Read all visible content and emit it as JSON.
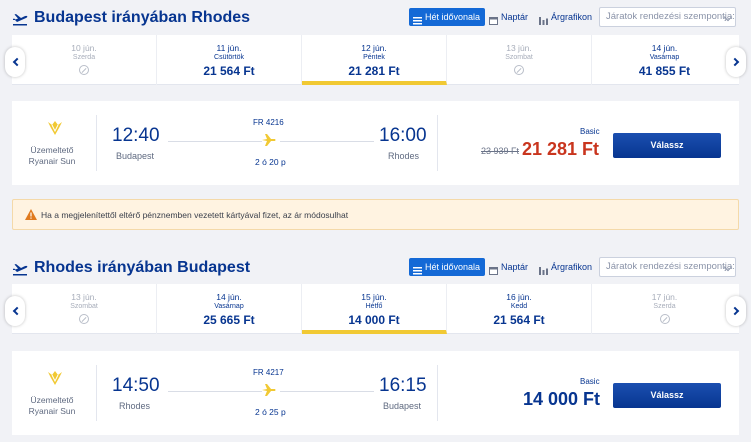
{
  "colors": {
    "brand": "#073590",
    "accent_blue": "#1469d6",
    "price_red": "#c9351e",
    "selected_underline": "#f1c933"
  },
  "controls": {
    "week_view": "Hét idővonala",
    "calendar": "Naptár",
    "price_chart": "Árgrafikon",
    "sort_placeholder": "Járatok rendezési szempontja:"
  },
  "outbound": {
    "title": "Budapest irányában Rhodes",
    "dates": [
      {
        "date": "10 jún.",
        "weekday": "Szerda",
        "price": "",
        "available": false
      },
      {
        "date": "11 jún.",
        "weekday": "Csütörtök",
        "price": "21 564 Ft",
        "available": true
      },
      {
        "date": "12 jún.",
        "weekday": "Péntek",
        "price": "21 281 Ft",
        "available": true
      },
      {
        "date": "13 jún.",
        "weekday": "Szombat",
        "price": "",
        "available": false
      },
      {
        "date": "14 jún.",
        "weekday": "Vasárnap",
        "price": "41 855 Ft",
        "available": true
      }
    ],
    "flight": {
      "operated_by": "Üzemeltető",
      "carrier": "Ryanair Sun",
      "depart_time": "12:40",
      "depart_city": "Budapest",
      "flight_no": "FR 4216",
      "duration": "2 ó 20 p",
      "arrive_time": "16:00",
      "arrive_city": "Rhodes",
      "fare_type": "Basic",
      "old_price": "23 939 Ft",
      "price": "21 281 Ft",
      "choose": "Válassz"
    }
  },
  "warning": {
    "text": "Ha a megjelenítettől eltérő pénznemben vezetett kártyával fizet, az ár módosulhat",
    "icon": "warning-icon"
  },
  "inbound": {
    "title": "Rhodes irányában Budapest",
    "dates": [
      {
        "date": "13 jún.",
        "weekday": "Szombat",
        "price": "",
        "available": false
      },
      {
        "date": "14 jún.",
        "weekday": "Vasárnap",
        "price": "25 665 Ft",
        "available": true
      },
      {
        "date": "15 jún.",
        "weekday": "Hétfő",
        "price": "14 000 Ft",
        "available": true
      },
      {
        "date": "16 jún.",
        "weekday": "Kedd",
        "price": "21 564 Ft",
        "available": true
      },
      {
        "date": "17 jún.",
        "weekday": "Szerda",
        "price": "",
        "available": false
      }
    ],
    "flight": {
      "operated_by": "Üzemeltető",
      "carrier": "Ryanair Sun",
      "depart_time": "14:50",
      "depart_city": "Rhodes",
      "flight_no": "FR 4217",
      "duration": "2 ó 25 p",
      "arrive_time": "16:15",
      "arrive_city": "Budapest",
      "fare_type": "Basic",
      "price": "14 000 Ft",
      "choose": "Válassz"
    }
  }
}
